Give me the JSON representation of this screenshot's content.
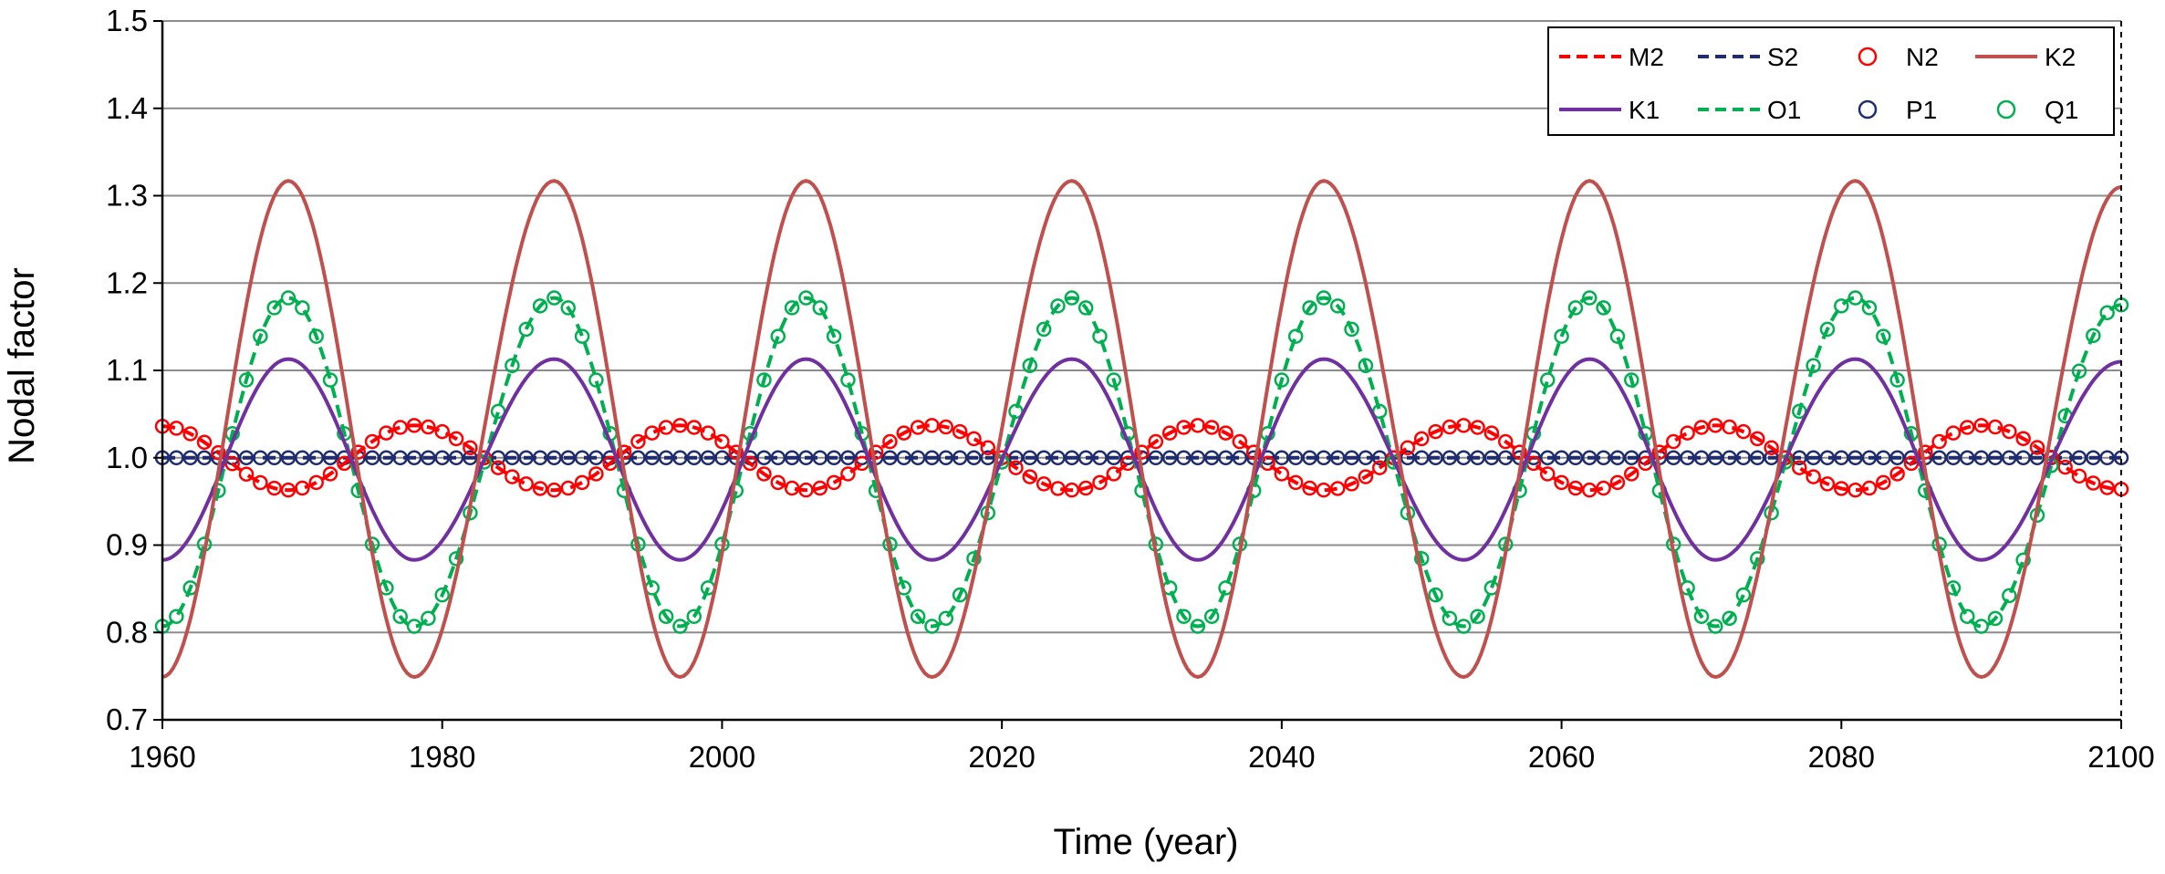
{
  "chart_data": {
    "type": "line",
    "title": "",
    "xlabel": "Time (year)",
    "ylabel": "Nodal factor",
    "xlim": [
      1960,
      2100
    ],
    "ylim": [
      0.7,
      1.5
    ],
    "xticks": [
      "1960",
      "1980",
      "2000",
      "2020",
      "2040",
      "2060",
      "2080",
      "2100"
    ],
    "yticks": [
      "0.7",
      "0.8",
      "0.9",
      "1.0",
      "1.1",
      "1.2",
      "1.3",
      "1.4",
      "1.5"
    ],
    "grid": "horizontal",
    "legend_position": "top-right",
    "nodal_period_years": 18.61,
    "series": [
      {
        "name": "M2",
        "color": "#ff0000",
        "style": "dashed",
        "marker": "none",
        "x": [
          1960,
          1969,
          1978,
          1988,
          1997,
          2006,
          2015,
          2025,
          2034,
          2043,
          2053,
          2062,
          2071,
          2081,
          2090,
          2100
        ],
        "y": [
          1.036,
          0.963,
          1.037,
          0.963,
          1.037,
          0.963,
          1.037,
          0.963,
          1.037,
          0.963,
          1.037,
          0.963,
          1.037,
          0.963,
          1.037,
          0.964
        ]
      },
      {
        "name": "S2",
        "color": "#1f2d6e",
        "style": "dashed",
        "marker": "none",
        "x": [
          1960,
          2100
        ],
        "y": [
          1.0,
          1.0
        ]
      },
      {
        "name": "N2",
        "color": "#ff0000",
        "style": "none",
        "marker": "circle",
        "x": [
          1960,
          1969,
          1978,
          1988,
          1997,
          2006,
          2015,
          2025,
          2034,
          2043,
          2053,
          2062,
          2071,
          2081,
          2090,
          2100
        ],
        "y": [
          1.036,
          0.963,
          1.037,
          0.963,
          1.037,
          0.963,
          1.037,
          0.963,
          1.037,
          0.963,
          1.037,
          0.963,
          1.037,
          0.963,
          1.037,
          0.964
        ]
      },
      {
        "name": "K2",
        "color": "#c0504d",
        "style": "solid",
        "marker": "none",
        "x": [
          1960,
          1969,
          1978,
          1988,
          1997,
          2006,
          2015,
          2025,
          2034,
          2043,
          2053,
          2062,
          2071,
          2081,
          2090,
          2100
        ],
        "y": [
          0.749,
          1.317,
          0.749,
          1.317,
          0.749,
          1.317,
          0.749,
          1.317,
          0.749,
          1.317,
          0.749,
          1.317,
          0.749,
          1.317,
          0.749,
          1.31
        ]
      },
      {
        "name": "K1",
        "color": "#7030a0",
        "style": "solid",
        "marker": "none",
        "x": [
          1960,
          1969,
          1978,
          1988,
          1997,
          2006,
          2015,
          2025,
          2034,
          2043,
          2053,
          2062,
          2071,
          2081,
          2090,
          2100
        ],
        "y": [
          0.883,
          1.113,
          0.883,
          1.113,
          0.883,
          1.113,
          0.883,
          1.113,
          0.883,
          1.113,
          0.883,
          1.113,
          0.883,
          1.113,
          0.883,
          1.11
        ]
      },
      {
        "name": "O1",
        "color": "#00b050",
        "style": "dashed",
        "marker": "none",
        "x": [
          1960,
          1969,
          1978,
          1988,
          1997,
          2006,
          2015,
          2025,
          2034,
          2043,
          2053,
          2062,
          2071,
          2081,
          2090,
          2100
        ],
        "y": [
          0.807,
          1.183,
          0.807,
          1.183,
          0.807,
          1.183,
          0.807,
          1.183,
          0.807,
          1.183,
          0.807,
          1.183,
          0.807,
          1.183,
          0.807,
          1.175
        ]
      },
      {
        "name": "P1",
        "color": "#1f2d6e",
        "style": "none",
        "marker": "circle",
        "x": [
          1960,
          2100
        ],
        "y": [
          1.0,
          1.0
        ]
      },
      {
        "name": "Q1",
        "color": "#00b050",
        "style": "none",
        "marker": "circle",
        "x": [
          1960,
          1969,
          1978,
          1988,
          1997,
          2006,
          2015,
          2025,
          2034,
          2043,
          2053,
          2062,
          2071,
          2081,
          2090,
          2100
        ],
        "y": [
          0.807,
          1.183,
          0.807,
          1.183,
          0.807,
          1.183,
          0.807,
          1.183,
          0.807,
          1.183,
          0.807,
          1.183,
          0.807,
          1.183,
          0.807,
          1.175
        ]
      }
    ]
  }
}
